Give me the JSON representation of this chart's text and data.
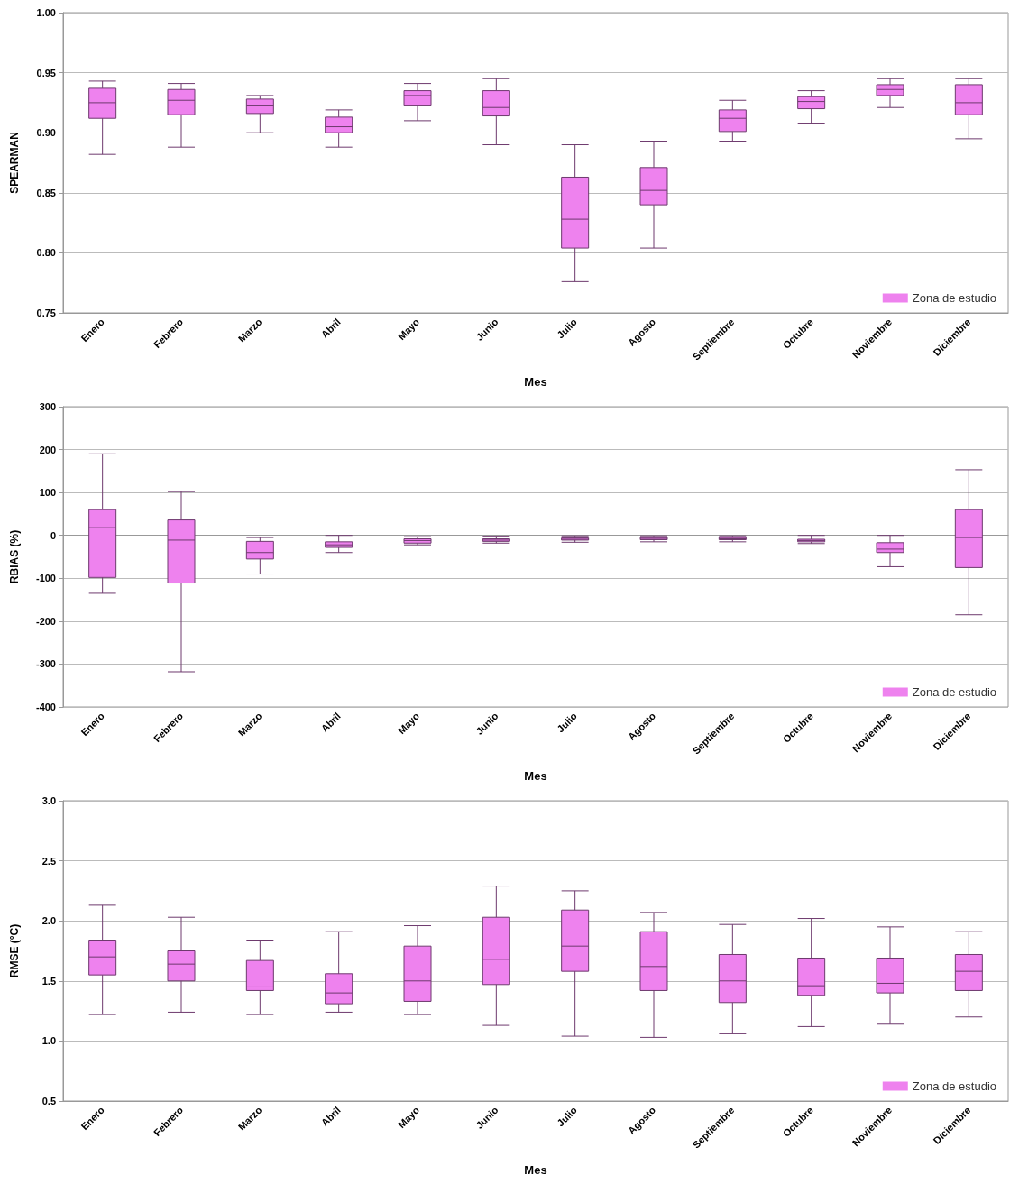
{
  "chart_data": [
    {
      "type": "box",
      "xlabel": "Mes",
      "ylabel": "SPEARMAN",
      "categories": [
        "Enero",
        "Febrero",
        "Marzo",
        "Abril",
        "Mayo",
        "Junio",
        "Julio",
        "Agosto",
        "Septiembre",
        "Octubre",
        "Noviembre",
        "Diciembre"
      ],
      "ylim": [
        0.75,
        1.0
      ],
      "yticks": [
        {
          "value": 0.75,
          "label": "0.75"
        },
        {
          "value": 0.8,
          "label": "0.80"
        },
        {
          "value": 0.85,
          "label": "0.85"
        },
        {
          "value": 0.9,
          "label": "0.90"
        },
        {
          "value": 0.95,
          "label": "0.95"
        },
        {
          "value": 1.0,
          "label": "1.00"
        }
      ],
      "grid": "y",
      "legend": "bottom right",
      "series": [
        {
          "name": "Zona de estudio",
          "color": "#ee82ee",
          "boxes": [
            {
              "low": 0.882,
              "q1": 0.912,
              "median": 0.925,
              "q3": 0.937,
              "high": 0.943
            },
            {
              "low": 0.888,
              "q1": 0.915,
              "median": 0.927,
              "q3": 0.936,
              "high": 0.941
            },
            {
              "low": 0.9,
              "q1": 0.916,
              "median": 0.923,
              "q3": 0.928,
              "high": 0.931
            },
            {
              "low": 0.888,
              "q1": 0.9,
              "median": 0.905,
              "q3": 0.913,
              "high": 0.919
            },
            {
              "low": 0.91,
              "q1": 0.923,
              "median": 0.931,
              "q3": 0.935,
              "high": 0.941
            },
            {
              "low": 0.89,
              "q1": 0.914,
              "median": 0.921,
              "q3": 0.935,
              "high": 0.945
            },
            {
              "low": 0.776,
              "q1": 0.804,
              "median": 0.828,
              "q3": 0.863,
              "high": 0.89
            },
            {
              "low": 0.804,
              "q1": 0.84,
              "median": 0.852,
              "q3": 0.871,
              "high": 0.893
            },
            {
              "low": 0.893,
              "q1": 0.901,
              "median": 0.912,
              "q3": 0.919,
              "high": 0.927
            },
            {
              "low": 0.908,
              "q1": 0.92,
              "median": 0.926,
              "q3": 0.93,
              "high": 0.935
            },
            {
              "low": 0.921,
              "q1": 0.931,
              "median": 0.936,
              "q3": 0.94,
              "high": 0.945
            },
            {
              "low": 0.895,
              "q1": 0.915,
              "median": 0.925,
              "q3": 0.94,
              "high": 0.945
            }
          ]
        }
      ]
    },
    {
      "type": "box",
      "xlabel": "Mes",
      "ylabel": "RBIAS (%)",
      "categories": [
        "Enero",
        "Febrero",
        "Marzo",
        "Abril",
        "Mayo",
        "Junio",
        "Julio",
        "Agosto",
        "Septiembre",
        "Octubre",
        "Noviembre",
        "Diciembre"
      ],
      "ylim": [
        -400,
        300
      ],
      "yticks": [
        -400,
        -300,
        -200,
        -100,
        0,
        100,
        200,
        300
      ],
      "grid": "y",
      "legend": "bottom right",
      "series": [
        {
          "name": "Zona de estudio",
          "color": "#ee82ee",
          "boxes": [
            {
              "low": -135,
              "q1": -98,
              "median": 18,
              "q3": 60,
              "high": 190
            },
            {
              "low": -318,
              "q1": -111,
              "median": -11,
              "q3": 36,
              "high": 102
            },
            {
              "low": -90,
              "q1": -55,
              "median": -40,
              "q3": -14,
              "high": -5
            },
            {
              "low": -40,
              "q1": -28,
              "median": -22,
              "q3": -15,
              "high": 0
            },
            {
              "low": -22,
              "q1": -18,
              "median": -12,
              "q3": -8,
              "high": -3
            },
            {
              "low": -18,
              "q1": -14,
              "median": -11,
              "q3": -8,
              "high": -2
            },
            {
              "low": -16,
              "q1": -11,
              "median": -9,
              "q3": -6,
              "high": -1
            },
            {
              "low": -15,
              "q1": -10,
              "median": -7,
              "q3": -5,
              "high": -1
            },
            {
              "low": -15,
              "q1": -10,
              "median": -8,
              "q3": -5,
              "high": -1
            },
            {
              "low": -19,
              "q1": -15,
              "median": -12,
              "q3": -9,
              "high": 0
            },
            {
              "low": -73,
              "q1": -40,
              "median": -32,
              "q3": -17,
              "high": 0
            },
            {
              "low": -185,
              "q1": -75,
              "median": -5,
              "q3": 60,
              "high": 153
            }
          ]
        }
      ]
    },
    {
      "type": "box",
      "xlabel": "Mes",
      "ylabel": "RMSE (°C)",
      "categories": [
        "Enero",
        "Febrero",
        "Marzo",
        "Abril",
        "Mayo",
        "Junio",
        "Julio",
        "Agosto",
        "Septiembre",
        "Octubre",
        "Noviembre",
        "Diciembre"
      ],
      "ylim": [
        0.5,
        3.0
      ],
      "yticks": [
        0.5,
        {
          "value": 1.0,
          "label": "1.0"
        },
        1.5,
        {
          "value": 2.0,
          "label": "2.0"
        },
        2.5,
        {
          "value": 3.0,
          "label": "3.0"
        }
      ],
      "grid": "y",
      "legend": "bottom right",
      "series": [
        {
          "name": "Zona de estudio",
          "color": "#ee82ee",
          "boxes": [
            {
              "low": 1.22,
              "q1": 1.55,
              "median": 1.7,
              "q3": 1.84,
              "high": 2.13
            },
            {
              "low": 1.24,
              "q1": 1.5,
              "median": 1.64,
              "q3": 1.75,
              "high": 2.03
            },
            {
              "low": 1.22,
              "q1": 1.42,
              "median": 1.45,
              "q3": 1.67,
              "high": 1.84
            },
            {
              "low": 1.24,
              "q1": 1.31,
              "median": 1.4,
              "q3": 1.56,
              "high": 1.91
            },
            {
              "low": 1.22,
              "q1": 1.33,
              "median": 1.5,
              "q3": 1.79,
              "high": 1.96
            },
            {
              "low": 1.13,
              "q1": 1.47,
              "median": 1.68,
              "q3": 2.03,
              "high": 2.29
            },
            {
              "low": 1.04,
              "q1": 1.58,
              "median": 1.79,
              "q3": 2.09,
              "high": 2.25
            },
            {
              "low": 1.03,
              "q1": 1.42,
              "median": 1.62,
              "q3": 1.91,
              "high": 2.07
            },
            {
              "low": 1.06,
              "q1": 1.32,
              "median": 1.5,
              "q3": 1.72,
              "high": 1.97
            },
            {
              "low": 1.12,
              "q1": 1.38,
              "median": 1.46,
              "q3": 1.69,
              "high": 2.02
            },
            {
              "low": 1.14,
              "q1": 1.4,
              "median": 1.48,
              "q3": 1.69,
              "high": 1.95
            },
            {
              "low": 1.2,
              "q1": 1.42,
              "median": 1.58,
              "q3": 1.72,
              "high": 1.91
            }
          ]
        }
      ]
    }
  ]
}
